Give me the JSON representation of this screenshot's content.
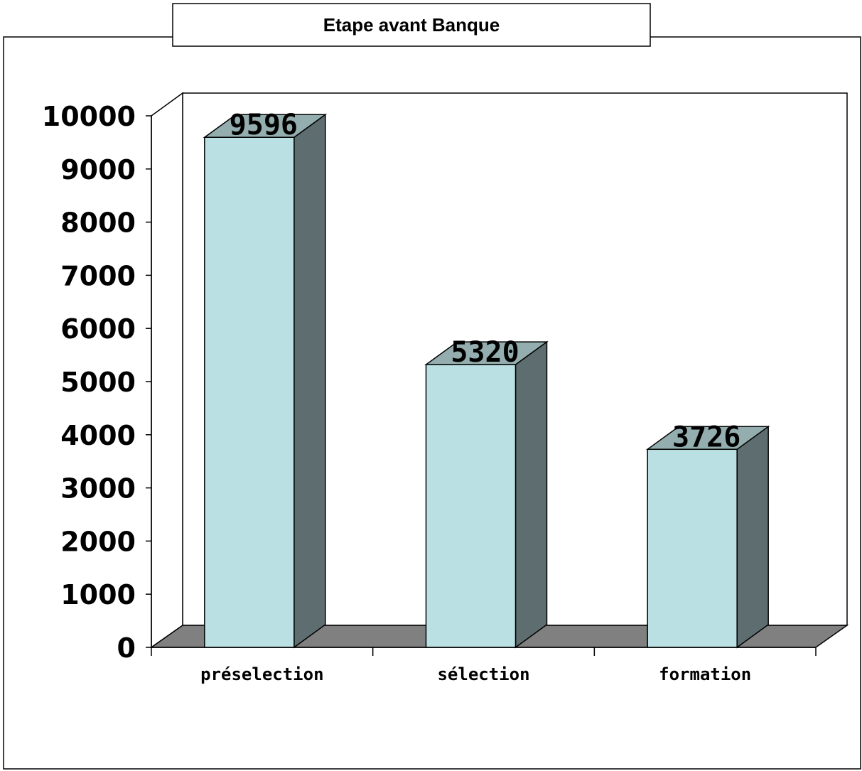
{
  "chart_data": {
    "type": "bar",
    "title": "Etape avant Banque",
    "xlabel": "",
    "ylabel": "",
    "categories": [
      "préselection",
      "sélection",
      "formation"
    ],
    "values": [
      9596,
      5320,
      3726
    ],
    "ylim": [
      0,
      10000
    ],
    "yticks": [
      "0",
      "1000",
      "2000",
      "3000",
      "4000",
      "5000",
      "6000",
      "7000",
      "8000",
      "9000",
      "10000"
    ],
    "data_labels": [
      "9596",
      "5320",
      "3726"
    ],
    "grid": false,
    "legend": "none",
    "style": "3d",
    "colors": {
      "bar_front": "#bbe0e3",
      "bar_side": "#5e6e70",
      "bar_top": "#94adae",
      "floor": "#808080"
    }
  }
}
